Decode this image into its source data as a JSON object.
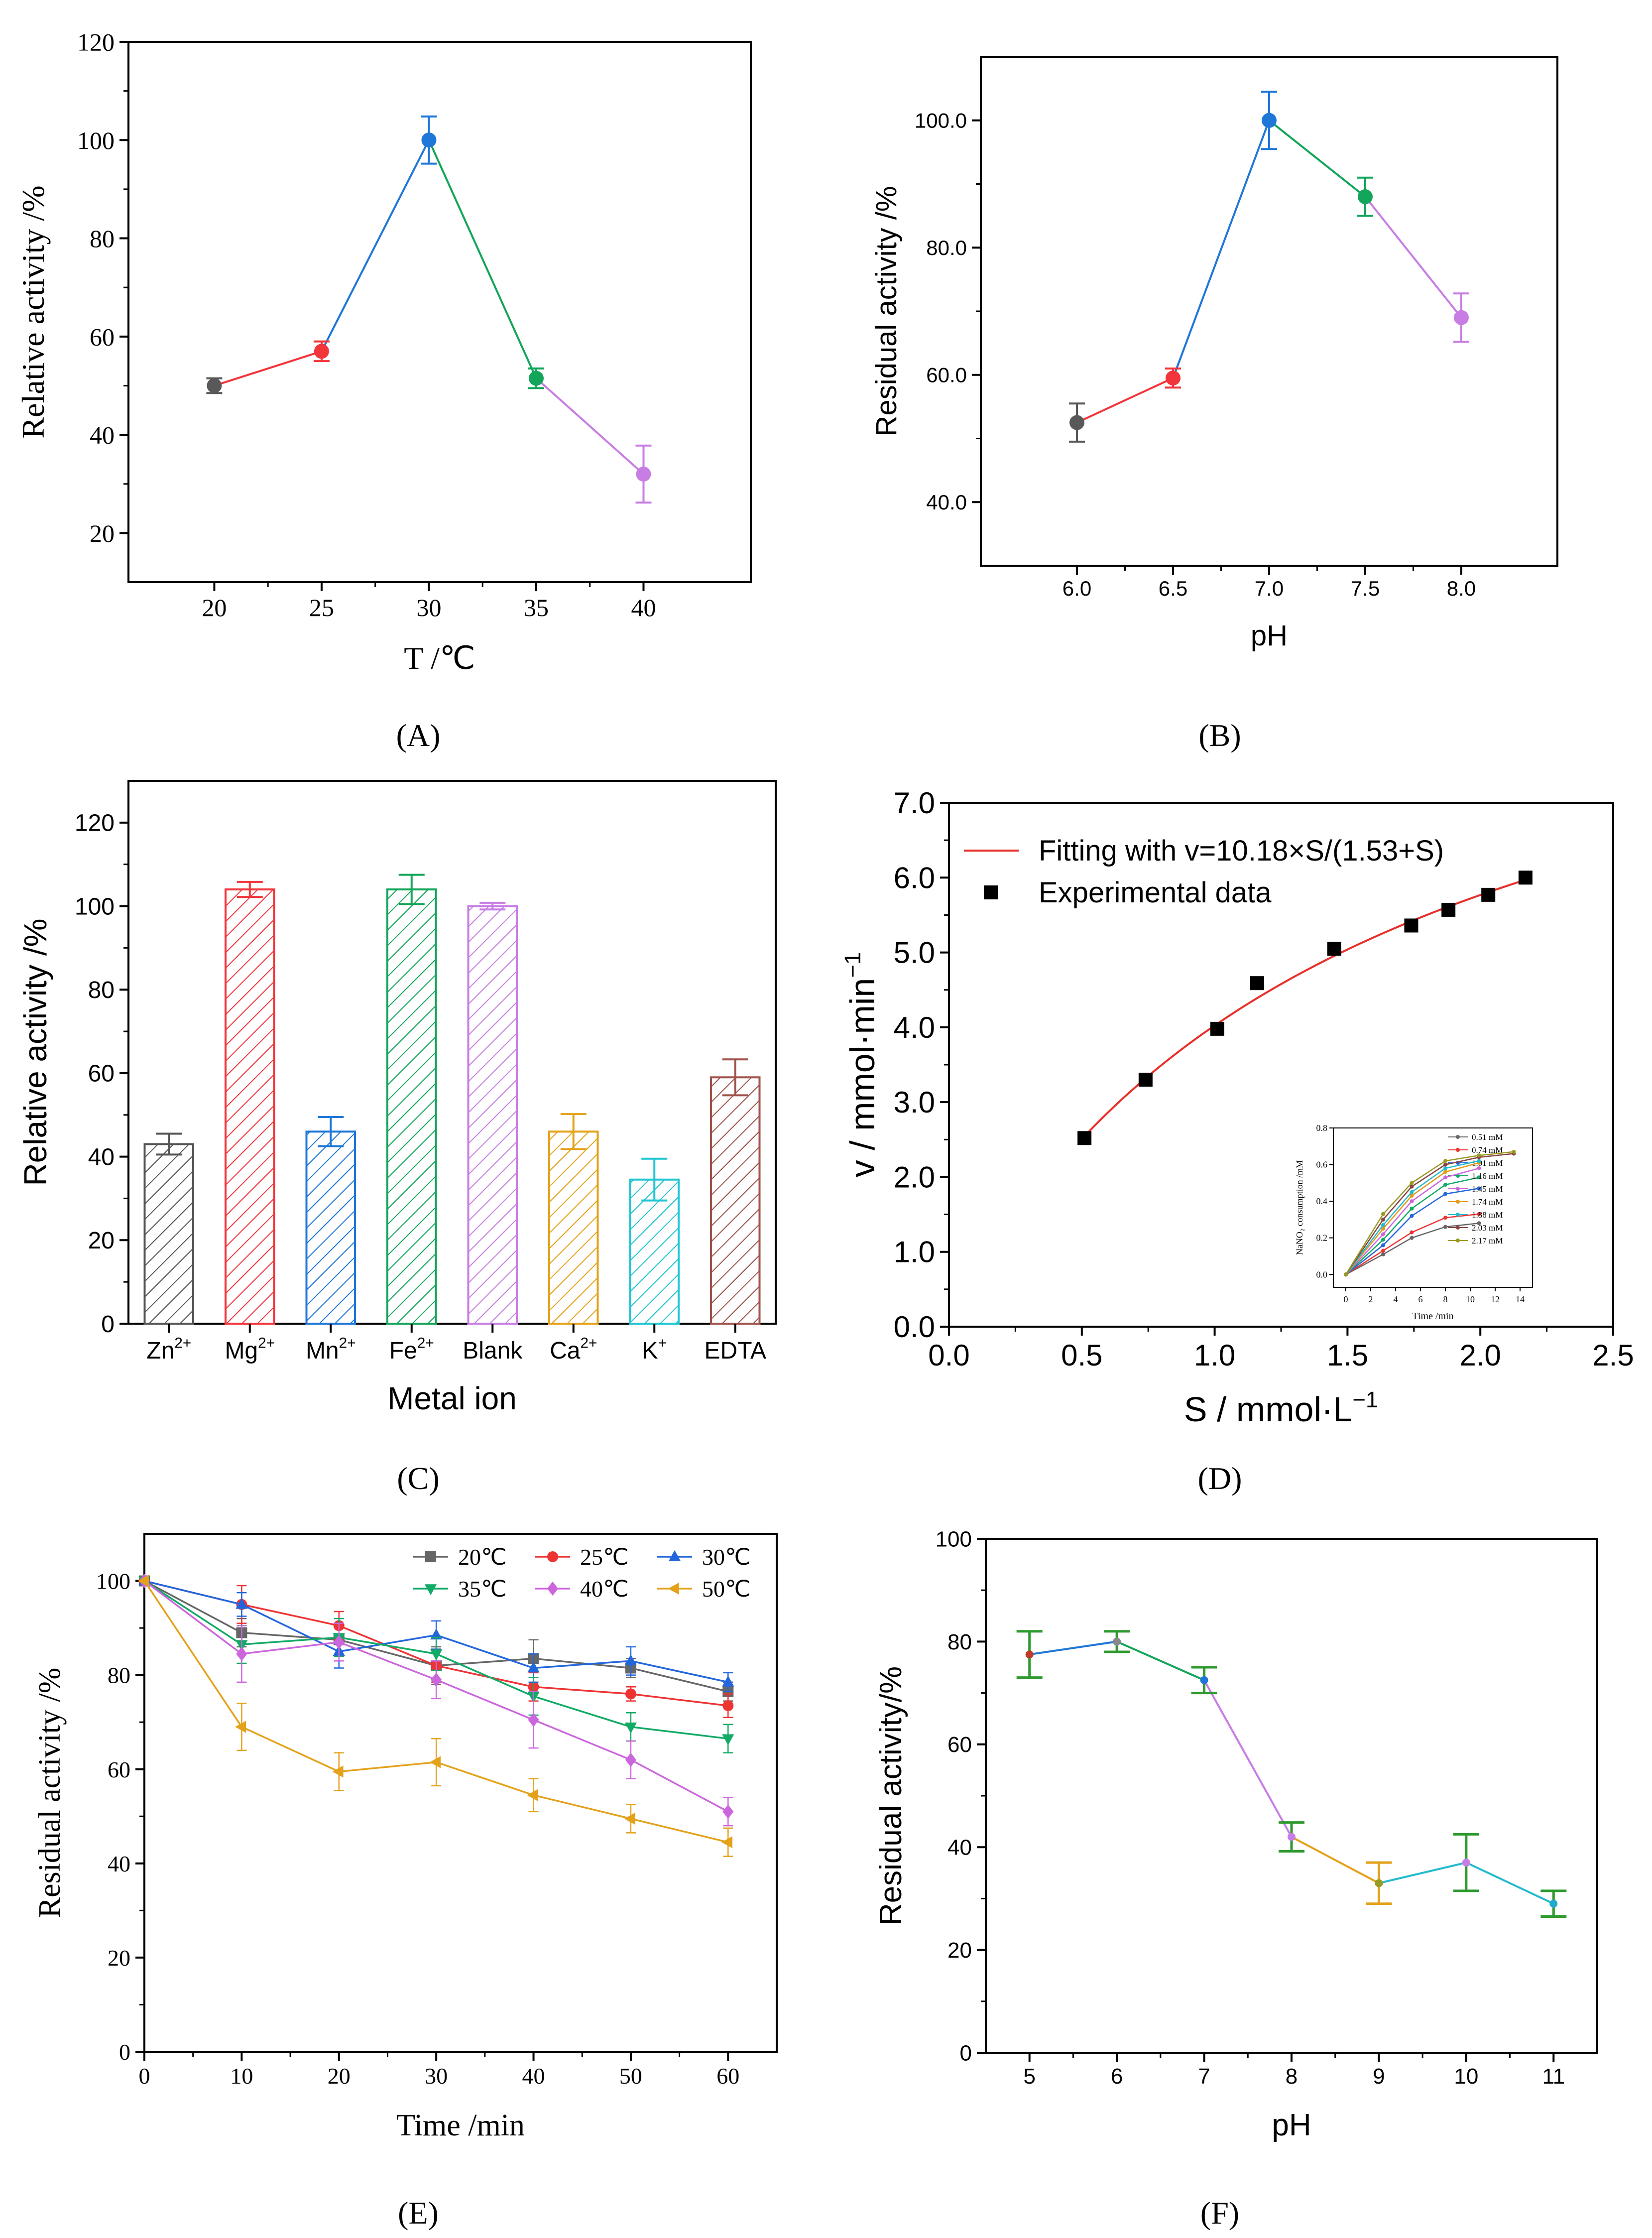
{
  "panel_labels": [
    "(A)",
    "(B)",
    "(C)",
    "(D)",
    "(E)",
    "(F)"
  ],
  "chart_data": [
    {
      "id": "A",
      "type": "line",
      "label": "(A)",
      "xlabel": "T /℃",
      "ylabel": "Relative activity /%",
      "xlim": [
        16,
        45
      ],
      "ylim": [
        10,
        120
      ],
      "xticks": [
        20,
        25,
        30,
        35,
        40
      ],
      "yticks": [
        20,
        40,
        60,
        80,
        100,
        120
      ],
      "points": [
        {
          "x": 20,
          "y": 50,
          "err": 1.5,
          "color": "#595959"
        },
        {
          "x": 25,
          "y": 57,
          "err": 2,
          "color": "#f2353b"
        },
        {
          "x": 30,
          "y": 100,
          "err": 4.8,
          "color": "#1f77d8"
        },
        {
          "x": 35,
          "y": 51.5,
          "err": 2,
          "color": "#13a55a"
        },
        {
          "x": 40,
          "y": 32,
          "err": 5.8,
          "color": "#c77de3"
        }
      ]
    },
    {
      "id": "B",
      "type": "line",
      "label": "(B)",
      "xlabel": "pH",
      "ylabel": "Residual activity /%",
      "xlim": [
        5.5,
        8.5
      ],
      "ylim": [
        30,
        110
      ],
      "xticks": [
        6.0,
        6.5,
        7.0,
        7.5,
        8.0
      ],
      "yticks": [
        40,
        60,
        80,
        100
      ],
      "tick_decimals": 1,
      "points": [
        {
          "x": 6.0,
          "y": 52.5,
          "err": 3,
          "color": "#595959"
        },
        {
          "x": 6.5,
          "y": 59.5,
          "err": 1.5,
          "color": "#f2353b"
        },
        {
          "x": 7.0,
          "y": 100,
          "err": 4.5,
          "color": "#1f77d8"
        },
        {
          "x": 7.5,
          "y": 88,
          "err": 3,
          "color": "#13a55a"
        },
        {
          "x": 8.0,
          "y": 69,
          "err": 3.8,
          "color": "#c77de3"
        }
      ]
    },
    {
      "id": "C",
      "type": "bar",
      "label": "(C)",
      "xlabel": "Metal ion",
      "ylabel": "Relative activity /%",
      "ylim": [
        0,
        130
      ],
      "yticks": [
        0,
        20,
        40,
        60,
        80,
        100,
        120
      ],
      "categories": [
        {
          "base": "Zn",
          "sup": "2+"
        },
        {
          "base": "Mg",
          "sup": "2+"
        },
        {
          "base": "Mn",
          "sup": "2+"
        },
        {
          "base": "Fe",
          "sup": "2+"
        },
        {
          "base": "Blank",
          "sup": ""
        },
        {
          "base": "Ca",
          "sup": "2+"
        },
        {
          "base": "K",
          "sup": "+"
        },
        {
          "base": "EDTA",
          "sup": ""
        }
      ],
      "values": [
        43,
        104,
        46,
        104,
        100,
        46,
        34.5,
        59
      ],
      "errors": [
        2.5,
        1.8,
        3.5,
        3.5,
        0.8,
        4.2,
        5,
        4.3
      ],
      "colors": [
        "#555555",
        "#f2353b",
        "#1f77d8",
        "#13a55a",
        "#c77de3",
        "#e3a21a",
        "#1fc6d1",
        "#a0524b"
      ]
    },
    {
      "id": "D",
      "type": "scatter",
      "label": "(D)",
      "xlabel": "S / mmol·L",
      "xlabel_sup": "−1",
      "ylabel": "v / mmol·min",
      "ylabel_sup": "−1",
      "xlim": [
        0.0,
        2.5
      ],
      "ylim": [
        0,
        7
      ],
      "xticks": [
        0.0,
        0.5,
        1.0,
        1.5,
        2.0,
        2.5
      ],
      "yticks": [
        0,
        1,
        2,
        3,
        4,
        5,
        6,
        7
      ],
      "tick_decimals": 1,
      "fit": {
        "label": "Fitting with v=10.18×S/(1.53+S)",
        "vmax": 10.18,
        "km": 1.53,
        "color": "#e8302a"
      },
      "scatter_label": "Experimental data",
      "x": [
        0.51,
        0.74,
        1.01,
        1.16,
        1.45,
        1.74,
        1.88,
        2.03,
        2.17
      ],
      "y": [
        2.52,
        3.3,
        3.98,
        4.59,
        5.05,
        5.36,
        5.57,
        5.77,
        6.0
      ],
      "inset": {
        "type": "line",
        "xlabel": "Time /min",
        "ylabel": "NaNO₂ consumption /mM",
        "xlim": [
          -1,
          15
        ],
        "ylim": [
          -0.07,
          0.8
        ],
        "xticks": [
          0,
          2,
          4,
          6,
          8,
          10,
          12,
          14
        ],
        "yticks": [
          0.0,
          0.2,
          0.4,
          0.6,
          0.8
        ],
        "x": [
          0,
          3,
          5.3,
          8,
          10.7,
          13.5
        ],
        "series": [
          {
            "name": "0.51 mM",
            "color": "#666666",
            "values": [
              0,
              0.11,
              0.2,
              0.26,
              0.28,
              null
            ]
          },
          {
            "name": "0.74 mM",
            "color": "#ee3333",
            "values": [
              0,
              0.13,
              0.23,
              0.31,
              0.33,
              null
            ]
          },
          {
            "name": "1.01 mM",
            "color": "#2266dd",
            "values": [
              0,
              0.16,
              0.32,
              0.44,
              0.47,
              null
            ]
          },
          {
            "name": "1.16 mM",
            "color": "#11aa66",
            "values": [
              0,
              0.19,
              0.36,
              0.49,
              0.53,
              null
            ]
          },
          {
            "name": "1.45 mM",
            "color": "#cc66dd",
            "values": [
              0,
              0.22,
              0.4,
              0.53,
              0.58,
              null
            ]
          },
          {
            "name": "1.74 mM",
            "color": "#e39a1a",
            "values": [
              0,
              0.25,
              0.43,
              0.56,
              0.61,
              null
            ]
          },
          {
            "name": "1.88 mM",
            "color": "#22bbcc",
            "values": [
              0,
              0.27,
              0.45,
              0.58,
              0.62,
              null
            ]
          },
          {
            "name": "2.03 mM",
            "color": "#884444",
            "values": [
              0,
              0.3,
              0.48,
              0.6,
              0.64,
              0.66
            ]
          },
          {
            "name": "2.17 mM",
            "color": "#9a9a22",
            "values": [
              0,
              0.33,
              0.5,
              0.62,
              0.65,
              0.67
            ]
          }
        ]
      }
    },
    {
      "id": "E",
      "type": "line",
      "label": "(E)",
      "xlabel": "Time /min",
      "ylabel": "Residual activity /%",
      "xlim": [
        0,
        65
      ],
      "ylim": [
        0,
        110
      ],
      "xticks": [
        0,
        10,
        20,
        30,
        40,
        50,
        60
      ],
      "yticks": [
        0,
        20,
        40,
        60,
        80,
        100
      ],
      "x": [
        0,
        10,
        20,
        30,
        40,
        50,
        60
      ],
      "series": [
        {
          "name": "20℃",
          "color": "#666666",
          "marker": "square",
          "values": [
            100,
            89,
            87.5,
            82,
            83.5,
            81.5,
            76.5
          ],
          "errors": [
            0,
            3,
            3.5,
            4,
            4,
            2,
            2
          ]
        },
        {
          "name": "25℃",
          "color": "#ee3333",
          "marker": "circle",
          "values": [
            100,
            95,
            90.5,
            82,
            77.5,
            76,
            73.5
          ],
          "errors": [
            0,
            4,
            3,
            3.5,
            3,
            1.5,
            2.5
          ]
        },
        {
          "name": "30℃",
          "color": "#2266dd",
          "marker": "triangle-up",
          "values": [
            100,
            95,
            85,
            88.5,
            81.5,
            83,
            78.5
          ],
          "errors": [
            0,
            2.5,
            3.5,
            3,
            3,
            3,
            2
          ]
        },
        {
          "name": "35℃",
          "color": "#11aa66",
          "marker": "triangle-down",
          "values": [
            100,
            86.5,
            88,
            84.5,
            75.5,
            69,
            66.5
          ],
          "errors": [
            0,
            4,
            4,
            3.5,
            4,
            3,
            3
          ]
        },
        {
          "name": "40℃",
          "color": "#cc66dd",
          "marker": "diamond",
          "values": [
            100,
            84.5,
            87,
            79,
            70.5,
            62,
            51
          ],
          "errors": [
            0,
            6,
            4,
            4,
            6,
            4,
            3
          ]
        },
        {
          "name": "50℃",
          "color": "#e3a21a",
          "marker": "triangle-left",
          "values": [
            100,
            69,
            59.5,
            61.5,
            54.5,
            49.5,
            44.5
          ],
          "errors": [
            0,
            5,
            4,
            5,
            3.5,
            3,
            3
          ]
        }
      ]
    },
    {
      "id": "F",
      "type": "line",
      "label": "(F)",
      "xlabel": "pH",
      "ylabel": "Residual activity/%",
      "xlim": [
        4.5,
        11.5
      ],
      "ylim": [
        0,
        100
      ],
      "xticks": [
        5,
        6,
        7,
        8,
        9,
        10,
        11
      ],
      "yticks": [
        0,
        20,
        40,
        60,
        80,
        100
      ],
      "points": [
        {
          "x": 5,
          "y": 77.5,
          "err": 4.5,
          "color": "#c0392b",
          "err_color": "#2e9a2e",
          "line_color": "#1f77d8"
        },
        {
          "x": 6,
          "y": 80,
          "err": 2,
          "color": "#888888",
          "err_color": "#2e9a2e",
          "line_color": "#1f77d8"
        },
        {
          "x": 7,
          "y": 72.5,
          "err": 2.5,
          "color": "#1f77d8",
          "err_color": "#2e9a2e",
          "line_color": "#13a55a"
        },
        {
          "x": 8,
          "y": 42,
          "err": 2.8,
          "color": "#c77de3",
          "err_color": "#2e9a2e",
          "line_color": "#c77de3"
        },
        {
          "x": 9,
          "y": 33,
          "err": 4,
          "color": "#9a9a22",
          "err_color": "#e3a21a",
          "line_color": "#e3a21a"
        },
        {
          "x": 10,
          "y": 37,
          "err": 5.5,
          "color": "#c77de3",
          "err_color": "#2e9a2e",
          "line_color": "#22bbcc"
        },
        {
          "x": 11,
          "y": 29,
          "err": 2.5,
          "color": "#22aacc",
          "err_color": "#2e9a2e",
          "line_color": "#22bbcc"
        }
      ]
    }
  ]
}
